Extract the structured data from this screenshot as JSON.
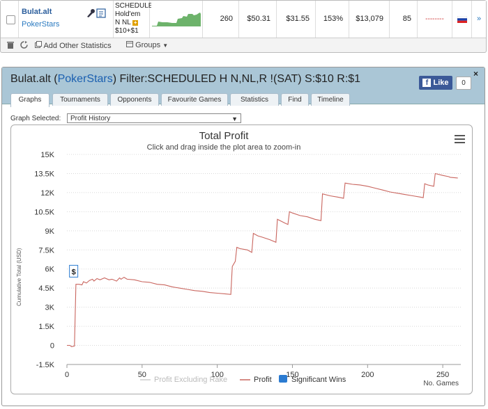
{
  "player": {
    "name": "Bulat.alt",
    "site": "PokerStars",
    "game_lines": [
      "SCHEDULED",
      "Hold'em",
      "N NL",
      "$10+$1"
    ],
    "games": "260",
    "avg_stake": "$50.31",
    "avg_profit": "$31.55",
    "roi": "153%",
    "total_profit": "$13,079",
    "ability": "85",
    "dashes": "--------",
    "flag": "russia-flag-icon",
    "menu": "»"
  },
  "toolbar": {
    "add_stats": "Add Other Statistics",
    "groups": "Groups"
  },
  "panel": {
    "title_prefix": "Bulat.alt (",
    "title_site": "PokerStars",
    "title_suffix": ") Filter:SCHEDULED H N,NL,R !(SAT) S:$10 R:$1",
    "fb_like": "Like",
    "fb_count": "0",
    "close": "×",
    "tabs": [
      "Graphs",
      "Tournaments",
      "Opponents",
      "Favourite Games",
      "Statistics",
      "Find",
      "Timeline"
    ],
    "graph_selected_label": "Graph Selected:",
    "graph_selected_value": "Profit History"
  },
  "colors": {
    "header_bg": "#aac6d6",
    "profit_line": "#c9655e",
    "sig_wins": "#2b7bd1",
    "spark": "#6db36b"
  },
  "chart_data": {
    "type": "line",
    "title": "Total Profit",
    "subtitle": "Click and drag inside the plot area to zoom-in",
    "ylabel": "Cumulative Total (USD)",
    "xlabel_note": "No. Games",
    "ylim": [
      -1500,
      15000
    ],
    "xlim": [
      0,
      262
    ],
    "y_ticks": [
      "-1.5K",
      "0",
      "1.5K",
      "3K",
      "4.5K",
      "6K",
      "7.5K",
      "9K",
      "10.5K",
      "12K",
      "13.5K",
      "15K"
    ],
    "y_tick_values": [
      -1500,
      0,
      1500,
      3000,
      4500,
      6000,
      7500,
      9000,
      10500,
      12000,
      13500,
      15000
    ],
    "x_ticks": [
      "0",
      "50",
      "100",
      "150",
      "200",
      "250"
    ],
    "x_tick_values": [
      0,
      50,
      100,
      150,
      200,
      250
    ],
    "legend": [
      "Profit Excluding Rake",
      "Profit",
      "Significant Wins"
    ],
    "flag_label": "$",
    "flag_at": [
      4,
      5800
    ],
    "series": [
      {
        "name": "Profit",
        "x": [
          0,
          2,
          3,
          5,
          6,
          8,
          10,
          11,
          13,
          15,
          17,
          18,
          20,
          22,
          25,
          28,
          30,
          33,
          35,
          36,
          38,
          40,
          45,
          50,
          55,
          60,
          65,
          70,
          75,
          80,
          85,
          90,
          95,
          100,
          105,
          109,
          110,
          112,
          113,
          115,
          120,
          123,
          124,
          127,
          130,
          135,
          139,
          140,
          145,
          147,
          148,
          150,
          155,
          160,
          165,
          169,
          170,
          175,
          180,
          184,
          185,
          190,
          195,
          200,
          205,
          210,
          215,
          220,
          225,
          230,
          235,
          237,
          238,
          240,
          244,
          245,
          250,
          254,
          255,
          260
        ],
        "y": [
          0,
          0,
          -100,
          -50,
          4800,
          4800,
          4750,
          5000,
          4900,
          5100,
          5200,
          5050,
          5250,
          5150,
          5300,
          5150,
          5200,
          5050,
          5300,
          5200,
          5350,
          5200,
          5150,
          5000,
          4950,
          4800,
          4750,
          4600,
          4500,
          4400,
          4300,
          4250,
          4150,
          4100,
          4050,
          4000,
          6200,
          6600,
          7700,
          7600,
          7500,
          7300,
          8800,
          8600,
          8500,
          8300,
          8100,
          9900,
          9600,
          9500,
          10500,
          10400,
          10200,
          10100,
          9900,
          9800,
          11900,
          11750,
          11650,
          11550,
          12750,
          12650,
          12600,
          12500,
          12350,
          12200,
          12050,
          11950,
          11850,
          11750,
          11650,
          11600,
          12700,
          12600,
          12500,
          13500,
          13350,
          13250,
          13200,
          13150
        ]
      }
    ]
  }
}
